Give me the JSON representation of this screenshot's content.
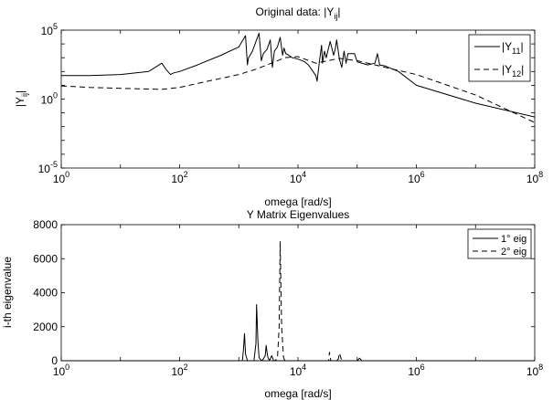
{
  "chart_data": [
    {
      "type": "line",
      "title": "Original data: |Y",
      "title_sub": "ij",
      "title_tail": "|",
      "xlabel": "omega [rad/s]",
      "ylabel": "|Y",
      "ylabel_sub": "ij",
      "ylabel_tail": "|",
      "xscale": "log",
      "yscale": "log",
      "xlim": [
        1,
        100000000
      ],
      "ylim": [
        1e-05,
        100000
      ],
      "x_ticks": [
        {
          "base": "10",
          "exp": "0"
        },
        {
          "base": "10",
          "exp": "2"
        },
        {
          "base": "10",
          "exp": "4"
        },
        {
          "base": "10",
          "exp": "6"
        },
        {
          "base": "10",
          "exp": "8"
        }
      ],
      "y_ticks": [
        {
          "base": "10",
          "exp": "-5"
        },
        {
          "base": "10",
          "exp": "0"
        },
        {
          "base": "10",
          "exp": "5"
        }
      ],
      "legend_position": "top-right",
      "legend": [
        {
          "label": "|Y",
          "sub": "11",
          "tail": "|"
        },
        {
          "label": "|Y",
          "sub": "12",
          "tail": "|"
        }
      ],
      "series": [
        {
          "style": "solid",
          "x": [
            1,
            3,
            10,
            30,
            50,
            60,
            70,
            80,
            100,
            200,
            500,
            1000,
            1300,
            1400,
            1450,
            1500,
            1700,
            2000,
            2200,
            2400,
            2600,
            3000,
            3400,
            3700,
            4000,
            4500,
            5000,
            5500,
            5800,
            6200,
            7000,
            8000,
            10000,
            13000,
            15000,
            18000,
            20000,
            21000,
            23000,
            25000,
            26000,
            28000,
            30000,
            35000,
            40000,
            43000,
            45000,
            50000,
            55000,
            60000,
            65000,
            70000,
            90000,
            100000,
            150000,
            200000,
            220000,
            240000,
            300000,
            500000,
            1000000,
            10000000,
            100000000
          ],
          "y": [
            50,
            50,
            60,
            100,
            400,
            130,
            60,
            80,
            100,
            300,
            1500,
            6000,
            40000,
            300,
            900,
            1200,
            3000,
            20000,
            60000,
            600,
            2000,
            4000,
            20000,
            200,
            3000,
            6000,
            30000,
            1500,
            5000,
            2000,
            1500,
            1000,
            800,
            500,
            300,
            100,
            50,
            20,
            500,
            8000,
            400,
            3000,
            1000,
            15000,
            1500,
            5000,
            20000,
            800,
            200,
            3000,
            400,
            2000,
            2000,
            500,
            300,
            400,
            2000,
            300,
            250,
            100,
            10,
            0.5,
            0.05
          ]
        },
        {
          "style": "dashed",
          "x": [
            1,
            3,
            10,
            50,
            100,
            300,
            1000,
            2000,
            3000,
            6000,
            10000,
            20000,
            50000,
            100000,
            300000,
            1000000,
            10000000,
            100000000
          ],
          "y": [
            9,
            7,
            6,
            5,
            7,
            20,
            60,
            150,
            300,
            1000,
            1200,
            400,
            900,
            600,
            200,
            60,
            2,
            0.02
          ]
        }
      ]
    },
    {
      "type": "line",
      "title": "Y Matrix Eigenvalues",
      "xlabel": "omega [rad/s]",
      "ylabel": "i-th eigenvalue",
      "xscale": "log",
      "yscale": "linear",
      "xlim": [
        1,
        100000000
      ],
      "ylim": [
        0,
        8000
      ],
      "x_ticks": [
        {
          "base": "10",
          "exp": "0"
        },
        {
          "base": "10",
          "exp": "2"
        },
        {
          "base": "10",
          "exp": "4"
        },
        {
          "base": "10",
          "exp": "6"
        },
        {
          "base": "10",
          "exp": "8"
        }
      ],
      "y_ticks": [
        {
          "value": 0,
          "label": "0"
        },
        {
          "value": 2000,
          "label": "2000"
        },
        {
          "value": 4000,
          "label": "4000"
        },
        {
          "value": 6000,
          "label": "6000"
        },
        {
          "value": 8000,
          "label": "8000"
        }
      ],
      "legend_position": "top-right",
      "legend": [
        {
          "label": "1° eig"
        },
        {
          "label": "2° eig"
        }
      ],
      "series": [
        {
          "style": "solid",
          "x": [
            1,
            1000,
            1150,
            1200,
            1250,
            1300,
            1400,
            1600,
            1800,
            1950,
            2000,
            2100,
            2200,
            2400,
            2600,
            2800,
            2900,
            3000,
            3100,
            3300,
            3600,
            3900,
            4300,
            10000,
            100000,
            110000,
            120000,
            130000,
            1000000,
            100000000
          ],
          "y": [
            0,
            0,
            0,
            700,
            1600,
            400,
            0,
            0,
            0,
            1000,
            3300,
            1200,
            200,
            0,
            100,
            300,
            900,
            500,
            200,
            0,
            300,
            0,
            0,
            0,
            0,
            150,
            0,
            0,
            0,
            0
          ]
        },
        {
          "style": "dashed",
          "x": [
            1,
            4000,
            4500,
            4800,
            5000,
            5300,
            5700,
            6000,
            30000,
            33000,
            34000,
            36000,
            45000,
            48000,
            50000,
            55000,
            100000000
          ],
          "y": [
            0,
            0,
            100,
            2000,
            7000,
            2000,
            200,
            0,
            0,
            0,
            500,
            0,
            0,
            100,
            450,
            0,
            0
          ]
        }
      ]
    }
  ]
}
